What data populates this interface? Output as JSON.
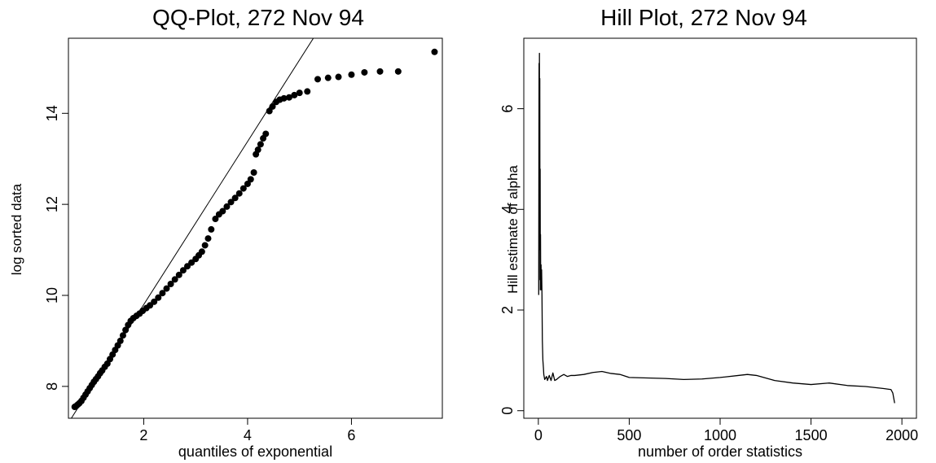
{
  "chart_data": [
    {
      "type": "scatter",
      "title": "QQ-Plot, 272 Nov 94",
      "xlabel": "quantiles of exponential",
      "ylabel": "log sorted data",
      "xlim": [
        0.55,
        7.75
      ],
      "ylim": [
        7.3,
        15.65
      ],
      "xticks": [
        2,
        4,
        6
      ],
      "yticks": [
        8,
        10,
        12,
        14
      ],
      "grid": false,
      "reference_line": {
        "x": [
          0.55,
          5.35
        ],
        "y": [
          7.2,
          15.8
        ]
      },
      "series": [
        {
          "marker": "filled-circle",
          "points": [
            [
              0.67,
              7.55
            ],
            [
              0.7,
              7.57
            ],
            [
              0.73,
              7.6
            ],
            [
              0.76,
              7.63
            ],
            [
              0.8,
              7.68
            ],
            [
              0.84,
              7.75
            ],
            [
              0.88,
              7.82
            ],
            [
              0.92,
              7.89
            ],
            [
              0.96,
              7.96
            ],
            [
              1.0,
              8.03
            ],
            [
              1.04,
              8.1
            ],
            [
              1.08,
              8.16
            ],
            [
              1.12,
              8.22
            ],
            [
              1.16,
              8.29
            ],
            [
              1.2,
              8.35
            ],
            [
              1.25,
              8.43
            ],
            [
              1.3,
              8.5
            ],
            [
              1.35,
              8.6
            ],
            [
              1.4,
              8.7
            ],
            [
              1.45,
              8.8
            ],
            [
              1.5,
              8.9
            ],
            [
              1.55,
              9.0
            ],
            [
              1.6,
              9.12
            ],
            [
              1.65,
              9.24
            ],
            [
              1.7,
              9.35
            ],
            [
              1.75,
              9.44
            ],
            [
              1.8,
              9.5
            ],
            [
              1.86,
              9.55
            ],
            [
              1.92,
              9.6
            ],
            [
              1.98,
              9.66
            ],
            [
              2.05,
              9.72
            ],
            [
              2.12,
              9.78
            ],
            [
              2.2,
              9.86
            ],
            [
              2.28,
              9.95
            ],
            [
              2.36,
              10.05
            ],
            [
              2.44,
              10.15
            ],
            [
              2.52,
              10.25
            ],
            [
              2.6,
              10.35
            ],
            [
              2.68,
              10.45
            ],
            [
              2.76,
              10.55
            ],
            [
              2.84,
              10.64
            ],
            [
              2.92,
              10.72
            ],
            [
              3.0,
              10.8
            ],
            [
              3.06,
              10.88
            ],
            [
              3.12,
              10.96
            ],
            [
              3.18,
              11.1
            ],
            [
              3.24,
              11.25
            ],
            [
              3.3,
              11.45
            ],
            [
              3.38,
              11.68
            ],
            [
              3.45,
              11.78
            ],
            [
              3.52,
              11.85
            ],
            [
              3.6,
              11.95
            ],
            [
              3.68,
              12.05
            ],
            [
              3.76,
              12.14
            ],
            [
              3.84,
              12.24
            ],
            [
              3.92,
              12.35
            ],
            [
              4.0,
              12.45
            ],
            [
              4.06,
              12.55
            ],
            [
              4.12,
              12.7
            ],
            [
              4.16,
              13.1
            ],
            [
              4.2,
              13.2
            ],
            [
              4.25,
              13.32
            ],
            [
              4.3,
              13.45
            ],
            [
              4.35,
              13.55
            ],
            [
              4.42,
              14.05
            ],
            [
              4.48,
              14.15
            ],
            [
              4.55,
              14.25
            ],
            [
              4.62,
              14.3
            ],
            [
              4.7,
              14.33
            ],
            [
              4.8,
              14.35
            ],
            [
              4.9,
              14.4
            ],
            [
              5.0,
              14.45
            ],
            [
              5.15,
              14.48
            ],
            [
              5.35,
              14.75
            ],
            [
              5.55,
              14.78
            ],
            [
              5.75,
              14.8
            ],
            [
              6.0,
              14.85
            ],
            [
              6.25,
              14.9
            ],
            [
              6.55,
              14.92
            ],
            [
              6.9,
              14.92
            ],
            [
              7.6,
              15.35
            ]
          ]
        }
      ]
    },
    {
      "type": "line",
      "title": "Hill Plot, 272 Nov 94",
      "xlabel": "number of order statistics",
      "ylabel": "Hill estimate of alpha",
      "xlim": [
        -80,
        2080
      ],
      "ylim": [
        -0.15,
        7.4
      ],
      "xticks": [
        0,
        500,
        1000,
        1500,
        2000
      ],
      "yticks": [
        0,
        2,
        4,
        6
      ],
      "grid": false,
      "series": [
        {
          "x": [
            2,
            3,
            4,
            5,
            6,
            7,
            8,
            9,
            10,
            11,
            12,
            13,
            14,
            15,
            16,
            17,
            18,
            20,
            22,
            25,
            28,
            30,
            35,
            40,
            45,
            50,
            60,
            70,
            80,
            90,
            100,
            120,
            140,
            160,
            180,
            200,
            250,
            300,
            350,
            400,
            450,
            500,
            600,
            700,
            800,
            900,
            1000,
            1100,
            1150,
            1200,
            1250,
            1300,
            1400,
            1500,
            1600,
            1700,
            1800,
            1900,
            1940,
            1950,
            1955,
            1960
          ],
          "y": [
            2.3,
            5.0,
            6.9,
            4.2,
            7.1,
            3.2,
            6.6,
            2.6,
            4.8,
            2.4,
            3.5,
            2.5,
            2.7,
            2.9,
            2.5,
            2.4,
            2.8,
            2.3,
            1.4,
            1.0,
            0.85,
            0.72,
            0.62,
            0.65,
            0.68,
            0.6,
            0.7,
            0.6,
            0.75,
            0.6,
            0.62,
            0.68,
            0.72,
            0.68,
            0.7,
            0.7,
            0.72,
            0.76,
            0.78,
            0.74,
            0.72,
            0.66,
            0.65,
            0.64,
            0.62,
            0.63,
            0.66,
            0.7,
            0.72,
            0.7,
            0.65,
            0.6,
            0.55,
            0.52,
            0.55,
            0.5,
            0.48,
            0.44,
            0.42,
            0.35,
            0.25,
            0.15
          ]
        }
      ]
    }
  ]
}
